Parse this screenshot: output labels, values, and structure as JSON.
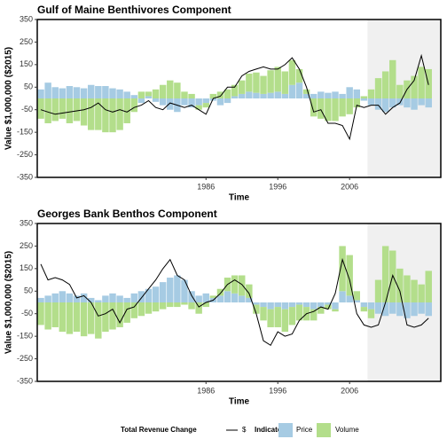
{
  "legend": {
    "line_title": "Total Revenue Change",
    "bar_title": "Indicators"
  },
  "chart_data": [
    {
      "type": "bar",
      "title": "Gulf of Maine Benthivores Component",
      "xlabel": "Time",
      "ylabel": "Value $1,000,000 ($2015)",
      "x": [
        1963,
        1964,
        1965,
        1966,
        1967,
        1968,
        1969,
        1970,
        1971,
        1972,
        1973,
        1974,
        1975,
        1976,
        1977,
        1978,
        1979,
        1980,
        1981,
        1982,
        1983,
        1984,
        1985,
        1986,
        1987,
        1988,
        1989,
        1990,
        1991,
        1992,
        1993,
        1994,
        1995,
        1996,
        1997,
        1998,
        1999,
        2000,
        2001,
        2002,
        2003,
        2004,
        2005,
        2006,
        2007,
        2008,
        2009,
        2010,
        2011,
        2012,
        2013,
        2014,
        2015,
        2016,
        2017
      ],
      "xlim": [
        1962.5,
        2018.7
      ],
      "xticks": [
        1986,
        1996,
        2006
      ],
      "highlight_start": 2008.5,
      "ylim": [
        -350,
        350
      ],
      "yticks": [
        -350,
        -250,
        -150,
        -50,
        50,
        150,
        250,
        350
      ],
      "series": [
        {
          "name": "Price",
          "color": "#a6cbe3",
          "values": [
            40,
            70,
            50,
            45,
            55,
            50,
            45,
            60,
            55,
            55,
            45,
            40,
            30,
            15,
            -20,
            10,
            -15,
            -30,
            -50,
            -60,
            -30,
            -40,
            -30,
            -20,
            -10,
            -30,
            -20,
            10,
            20,
            30,
            25,
            20,
            25,
            30,
            20,
            60,
            70,
            20,
            20,
            30,
            25,
            30,
            20,
            50,
            40,
            -10,
            -30,
            -50,
            -60,
            -40,
            -30,
            -40,
            -50,
            -30,
            -40
          ]
        },
        {
          "name": "Volume",
          "color": "#b3de8b",
          "values": [
            -90,
            -110,
            -100,
            -90,
            -110,
            -100,
            -120,
            -140,
            -140,
            -150,
            -150,
            -140,
            -110,
            -60,
            30,
            20,
            40,
            60,
            80,
            70,
            30,
            20,
            -20,
            -20,
            20,
            30,
            40,
            50,
            60,
            80,
            90,
            80,
            100,
            110,
            100,
            110,
            60,
            20,
            -80,
            -90,
            -100,
            -100,
            -80,
            -70,
            -40,
            10,
            40,
            90,
            120,
            170,
            60,
            80,
            100,
            140,
            130
          ]
        },
        {
          "name": "$",
          "color": "#000000",
          "kind": "line",
          "values": [
            -50,
            -60,
            -70,
            -65,
            -60,
            -55,
            -50,
            -40,
            -20,
            -50,
            -60,
            -50,
            -60,
            -40,
            -30,
            -10,
            -40,
            -50,
            -20,
            -30,
            -40,
            -30,
            -50,
            -70,
            0,
            10,
            50,
            50,
            100,
            120,
            130,
            140,
            130,
            130,
            150,
            180,
            130,
            50,
            -60,
            -50,
            -110,
            -110,
            -120,
            -180,
            -30,
            -40,
            -30,
            -30,
            -70,
            -40,
            -20,
            40,
            80,
            190,
            60
          ]
        }
      ]
    },
    {
      "type": "bar",
      "title": "Georges Bank Benthos Component",
      "xlabel": "Time",
      "ylabel": "Value $1,000,000 ($2015)",
      "x": [
        1963,
        1964,
        1965,
        1966,
        1967,
        1968,
        1969,
        1970,
        1971,
        1972,
        1973,
        1974,
        1975,
        1976,
        1977,
        1978,
        1979,
        1980,
        1981,
        1982,
        1983,
        1984,
        1985,
        1986,
        1987,
        1988,
        1989,
        1990,
        1991,
        1992,
        1993,
        1994,
        1995,
        1996,
        1997,
        1998,
        1999,
        2000,
        2001,
        2002,
        2003,
        2004,
        2005,
        2006,
        2007,
        2008,
        2009,
        2010,
        2011,
        2012,
        2013,
        2014,
        2015,
        2016,
        2017
      ],
      "xlim": [
        1962.5,
        2018.7
      ],
      "xticks": [
        1986,
        1996,
        2006
      ],
      "highlight_start": 2008.5,
      "ylim": [
        -350,
        350
      ],
      "yticks": [
        -350,
        -250,
        -150,
        -50,
        50,
        150,
        250,
        350
      ],
      "series": [
        {
          "name": "Price",
          "color": "#a6cbe3",
          "values": [
            20,
            30,
            40,
            50,
            40,
            30,
            40,
            20,
            10,
            30,
            40,
            30,
            20,
            40,
            50,
            60,
            70,
            90,
            110,
            120,
            100,
            50,
            30,
            40,
            20,
            30,
            50,
            40,
            30,
            20,
            -10,
            -20,
            -30,
            -20,
            -30,
            -20,
            -10,
            -20,
            -30,
            -20,
            -10,
            -30,
            50,
            30,
            10,
            -20,
            -30,
            -50,
            -60,
            -50,
            -60,
            -70,
            -60,
            -50,
            -60
          ]
        },
        {
          "name": "Volume",
          "color": "#b3de8b",
          "values": [
            -100,
            -120,
            -110,
            -130,
            -140,
            -130,
            -150,
            -140,
            -160,
            -130,
            -120,
            -110,
            -90,
            -70,
            -60,
            -50,
            -40,
            -30,
            -20,
            -20,
            -10,
            -30,
            -50,
            -20,
            10,
            30,
            60,
            80,
            90,
            60,
            -40,
            -60,
            -80,
            -90,
            -100,
            -80,
            -70,
            -60,
            -50,
            -30,
            -20,
            -10,
            200,
            180,
            40,
            -20,
            -40,
            100,
            250,
            230,
            150,
            120,
            100,
            80,
            140
          ]
        },
        {
          "name": "$",
          "color": "#000000",
          "kind": "line",
          "values": [
            170,
            100,
            110,
            100,
            80,
            20,
            30,
            0,
            -60,
            -50,
            -30,
            -90,
            -30,
            -20,
            20,
            60,
            100,
            150,
            190,
            120,
            100,
            30,
            -20,
            0,
            10,
            40,
            80,
            100,
            80,
            40,
            -50,
            -170,
            -190,
            -130,
            -150,
            -140,
            -80,
            -50,
            -40,
            -20,
            -30,
            40,
            190,
            100,
            -50,
            -100,
            -110,
            -100,
            0,
            120,
            50,
            -100,
            -110,
            -100,
            -70
          ]
        }
      ]
    }
  ]
}
